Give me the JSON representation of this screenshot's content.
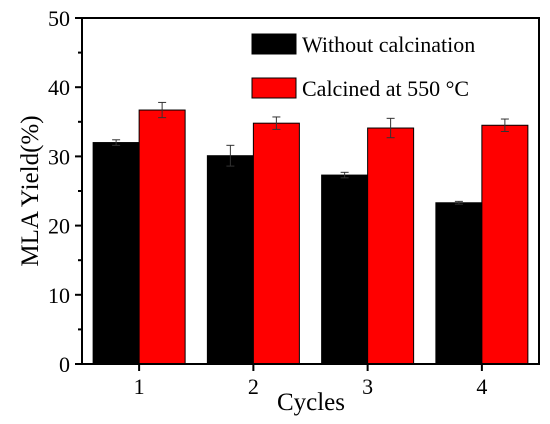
{
  "chart_data": {
    "type": "bar",
    "title": "",
    "xlabel": "Cycles",
    "ylabel": "MLA Yield(%)",
    "categories": [
      "1",
      "2",
      "3",
      "4"
    ],
    "ylim": [
      0,
      50
    ],
    "yticks": [
      "0",
      "10",
      "20",
      "30",
      "40",
      "50"
    ],
    "series": [
      {
        "name": "Without calcination",
        "color": "#000000",
        "values": [
          32.0,
          30.1,
          27.3,
          23.3
        ],
        "errors": [
          0.4,
          1.5,
          0.4,
          0.2
        ]
      },
      {
        "name": "Calcined at 550 °C",
        "color": "#ff0000",
        "values": [
          36.7,
          34.8,
          34.1,
          34.5
        ],
        "errors": [
          1.1,
          0.9,
          1.4,
          0.9
        ]
      }
    ],
    "legend_position": "top-right",
    "grid": false
  }
}
